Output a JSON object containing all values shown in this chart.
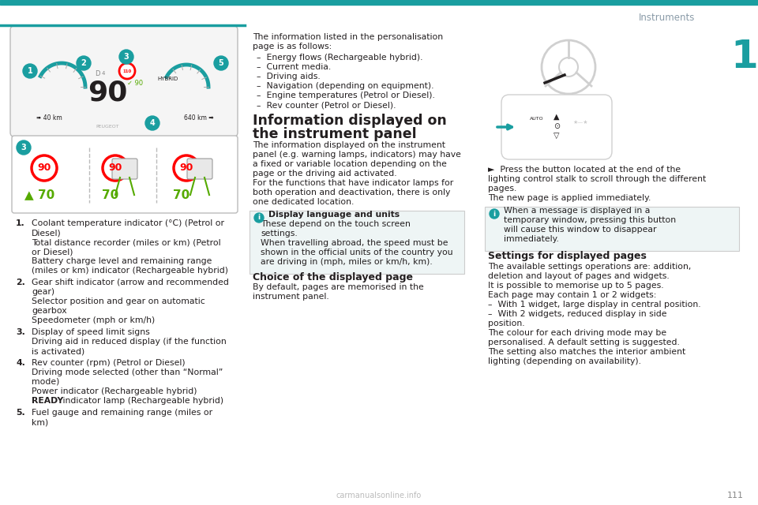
{
  "page_title": "Instruments",
  "chapter_num": "1",
  "teal_color": "#1A9EA0",
  "teal_light": "#EAF5F5",
  "text_color": "#231F20",
  "gray_text": "#8A9BA8",
  "bg_color": "#FFFFFF",
  "info_bg": "#EEF5F5",
  "numbered_items": [
    {
      "num": "1.",
      "lines": [
        "Coolant temperature indicator (°C) (Petrol or",
        "Diesel)",
        "Total distance recorder (miles or km) (Petrol",
        "or Diesel)",
        "Battery charge level and remaining range",
        "(miles or km) indicator (Rechargeable hybrid)"
      ]
    },
    {
      "num": "2.",
      "lines": [
        "Gear shift indicator (arrow and recommended",
        "gear)",
        "Selector position and gear on automatic",
        "gearbox",
        "Speedometer (mph or km/h)"
      ]
    },
    {
      "num": "3.",
      "lines": [
        "Display of speed limit signs",
        "Driving aid in reduced display (if the function",
        "is activated)"
      ]
    },
    {
      "num": "4.",
      "lines": [
        "Rev counter (rpm) (Petrol or Diesel)",
        "Driving mode selected (other than “Normal”",
        "mode)",
        "Power indicator (Rechargeable hybrid)",
        "READY indicator lamp (Rechargeable hybrid)"
      ]
    },
    {
      "num": "5.",
      "lines": [
        "Fuel gauge and remaining range (miles or",
        "km)"
      ]
    }
  ]
}
